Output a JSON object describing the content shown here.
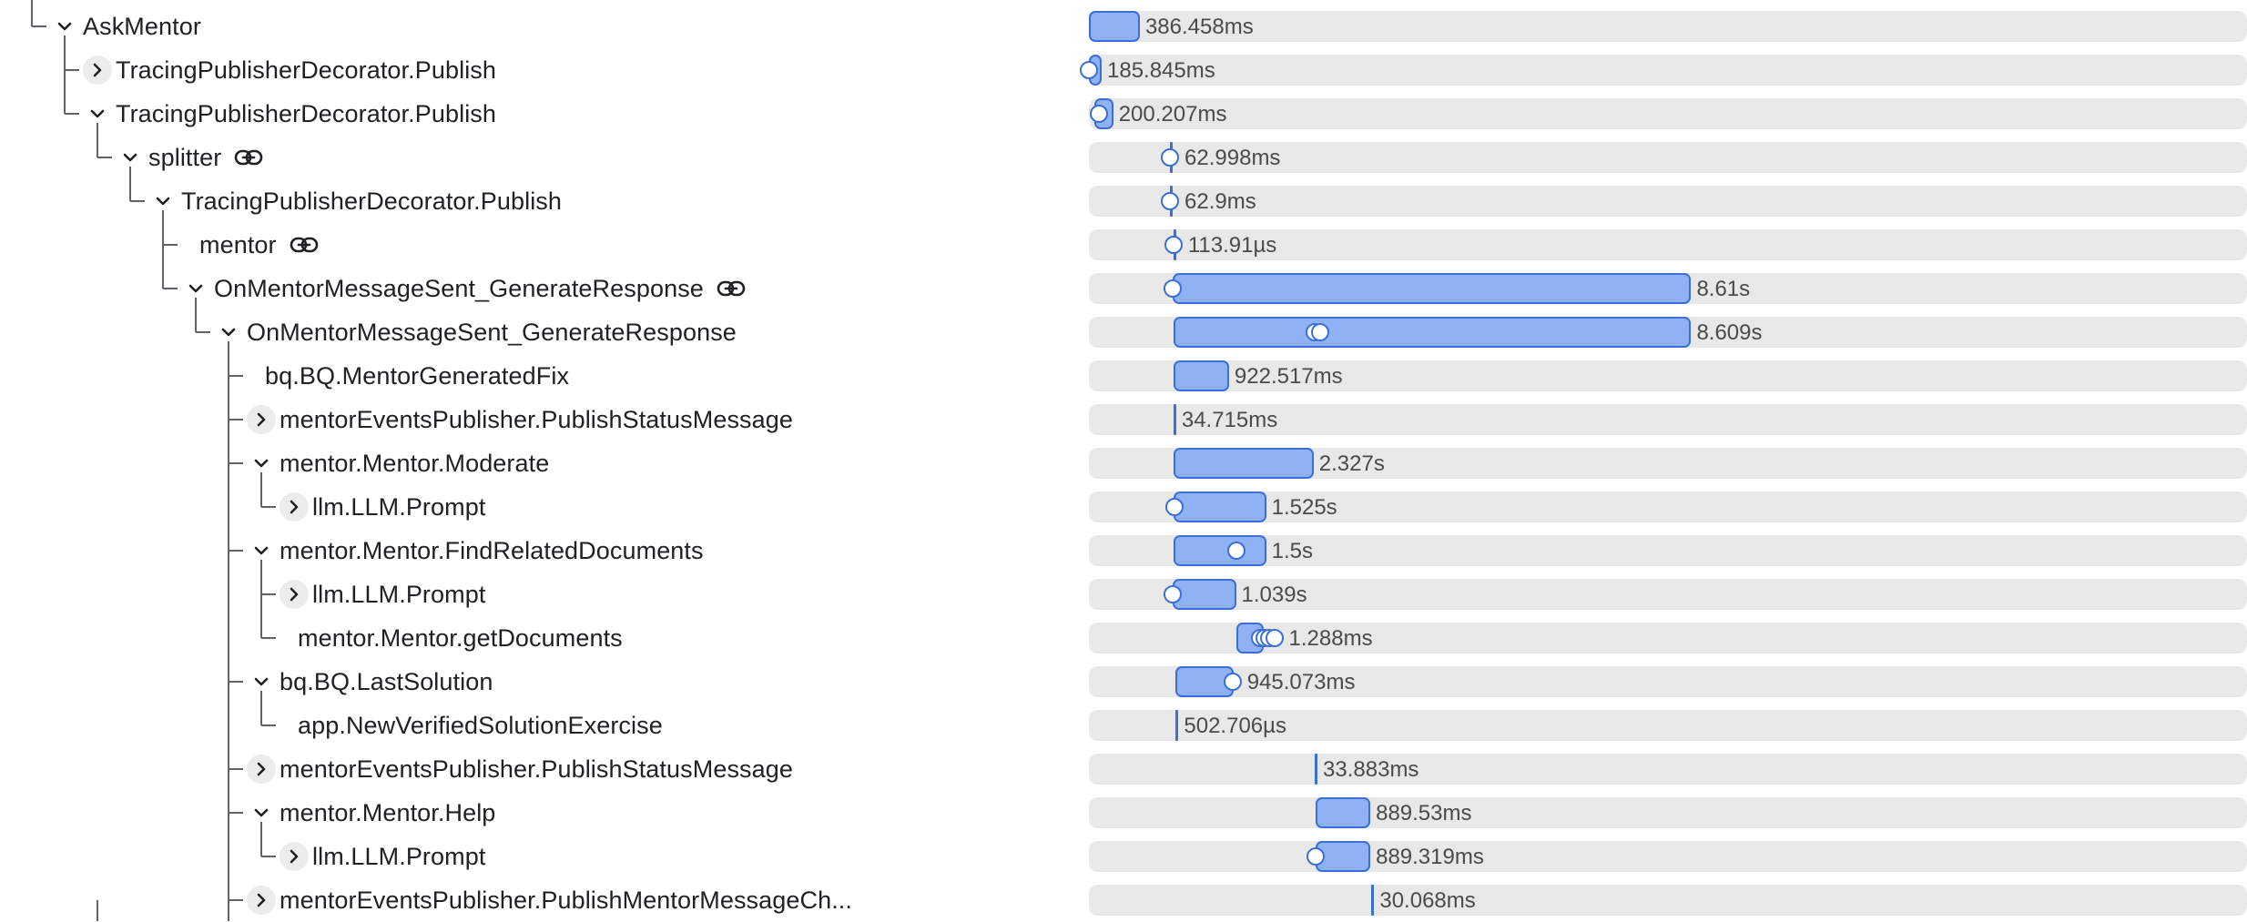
{
  "spans": [
    {
      "label": "AskMentor",
      "depth": 1,
      "toggle": "expanded",
      "link": false,
      "duration": "386.458ms",
      "bar_start": 0.0,
      "bar_end": 0.044,
      "markers": []
    },
    {
      "label": "TracingPublisherDecorator.Publish",
      "depth": 2,
      "toggle": "collapsed",
      "link": false,
      "duration": "185.845ms",
      "bar_start": 0.0,
      "bar_end": 0.011,
      "markers": [
        0.0
      ]
    },
    {
      "label": "TracingPublisherDecorator.Publish",
      "depth": 2,
      "toggle": "expanded",
      "link": false,
      "duration": "200.207ms",
      "bar_start": 0.005,
      "bar_end": 0.021,
      "markers": [
        0.009
      ]
    },
    {
      "label": "splitter",
      "depth": 3,
      "toggle": "expanded",
      "link": true,
      "duration": "62.998ms",
      "bar_start": 0.07,
      "bar_end": 0.07,
      "markers": [
        0.07
      ]
    },
    {
      "label": "TracingPublisherDecorator.Publish",
      "depth": 4,
      "toggle": "expanded",
      "link": false,
      "duration": "62.9ms",
      "bar_start": 0.07,
      "bar_end": 0.07,
      "markers": [
        0.07
      ]
    },
    {
      "label": "mentor",
      "depth": 5,
      "toggle": "none",
      "link": true,
      "duration": "113.91µs",
      "bar_start": 0.073,
      "bar_end": 0.073,
      "markers": [
        0.073
      ]
    },
    {
      "label": "OnMentorMessageSent_GenerateResponse",
      "depth": 5,
      "toggle": "expanded",
      "link": true,
      "duration": "8.61s",
      "bar_start": 0.072,
      "bar_end": 0.52,
      "markers": [
        0.072
      ]
    },
    {
      "label": "OnMentorMessageSent_GenerateResponse",
      "depth": 6,
      "toggle": "expanded",
      "link": false,
      "duration": "8.609s",
      "bar_start": 0.073,
      "bar_end": 0.52,
      "markers": [
        0.195,
        0.2
      ]
    },
    {
      "label": "bq.BQ.MentorGeneratedFix",
      "depth": 7,
      "toggle": "none",
      "link": false,
      "duration": "922.517ms",
      "bar_start": 0.073,
      "bar_end": 0.121,
      "markers": []
    },
    {
      "label": "mentorEventsPublisher.PublishStatusMessage",
      "depth": 7,
      "toggle": "collapsed",
      "link": false,
      "duration": "34.715ms",
      "bar_start": 0.073,
      "bar_end": 0.073,
      "markers": []
    },
    {
      "label": "mentor.Mentor.Moderate",
      "depth": 7,
      "toggle": "expanded",
      "link": false,
      "duration": "2.327s",
      "bar_start": 0.073,
      "bar_end": 0.194,
      "markers": []
    },
    {
      "label": "llm.LLM.Prompt",
      "depth": 8,
      "toggle": "collapsed",
      "link": false,
      "duration": "1.525s",
      "bar_start": 0.073,
      "bar_end": 0.153,
      "markers": [
        0.074
      ]
    },
    {
      "label": "mentor.Mentor.FindRelatedDocuments",
      "depth": 7,
      "toggle": "expanded",
      "link": false,
      "duration": "1.5s",
      "bar_start": 0.073,
      "bar_end": 0.153,
      "markers": [
        0.127
      ]
    },
    {
      "label": "llm.LLM.Prompt",
      "depth": 8,
      "toggle": "collapsed",
      "link": false,
      "duration": "1.039s",
      "bar_start": 0.072,
      "bar_end": 0.127,
      "markers": [
        0.072
      ]
    },
    {
      "label": "mentor.Mentor.getDocuments",
      "depth": 8,
      "toggle": "none",
      "link": false,
      "duration": "1.288ms",
      "bar_start": 0.127,
      "bar_end": 0.151,
      "markers": [
        0.148,
        0.152,
        0.156,
        0.16
      ]
    },
    {
      "label": "bq.BQ.LastSolution",
      "depth": 7,
      "toggle": "expanded",
      "link": false,
      "duration": "945.073ms",
      "bar_start": 0.075,
      "bar_end": 0.125,
      "markers": [
        0.124
      ]
    },
    {
      "label": "app.NewVerifiedSolutionExercise",
      "depth": 8,
      "toggle": "none",
      "link": false,
      "duration": "502.706µs",
      "bar_start": 0.075,
      "bar_end": 0.075,
      "markers": []
    },
    {
      "label": "mentorEventsPublisher.PublishStatusMessage",
      "depth": 7,
      "toggle": "collapsed",
      "link": false,
      "duration": "33.883ms",
      "bar_start": 0.195,
      "bar_end": 0.195,
      "markers": []
    },
    {
      "label": "mentor.Mentor.Help",
      "depth": 7,
      "toggle": "expanded",
      "link": false,
      "duration": "889.53ms",
      "bar_start": 0.196,
      "bar_end": 0.243,
      "markers": []
    },
    {
      "label": "llm.LLM.Prompt",
      "depth": 8,
      "toggle": "collapsed",
      "link": false,
      "duration": "889.319ms",
      "bar_start": 0.196,
      "bar_end": 0.243,
      "markers": [
        0.196
      ]
    },
    {
      "label": "mentorEventsPublisher.PublishMentorMessageCh...",
      "depth": 7,
      "toggle": "collapsed",
      "link": false,
      "duration": "30.068ms",
      "bar_start": 0.244,
      "bar_end": 0.244,
      "markers": []
    }
  ],
  "icons": {
    "expanded": "chevron-down-icon",
    "collapsed": "chevron-right-icon",
    "link": "link-icon"
  },
  "colors": {
    "bar_fill": "#8fb2f5",
    "bar_border": "#3b6fd6",
    "track": "#e8e8e8",
    "tree_line": "#5f6368"
  }
}
